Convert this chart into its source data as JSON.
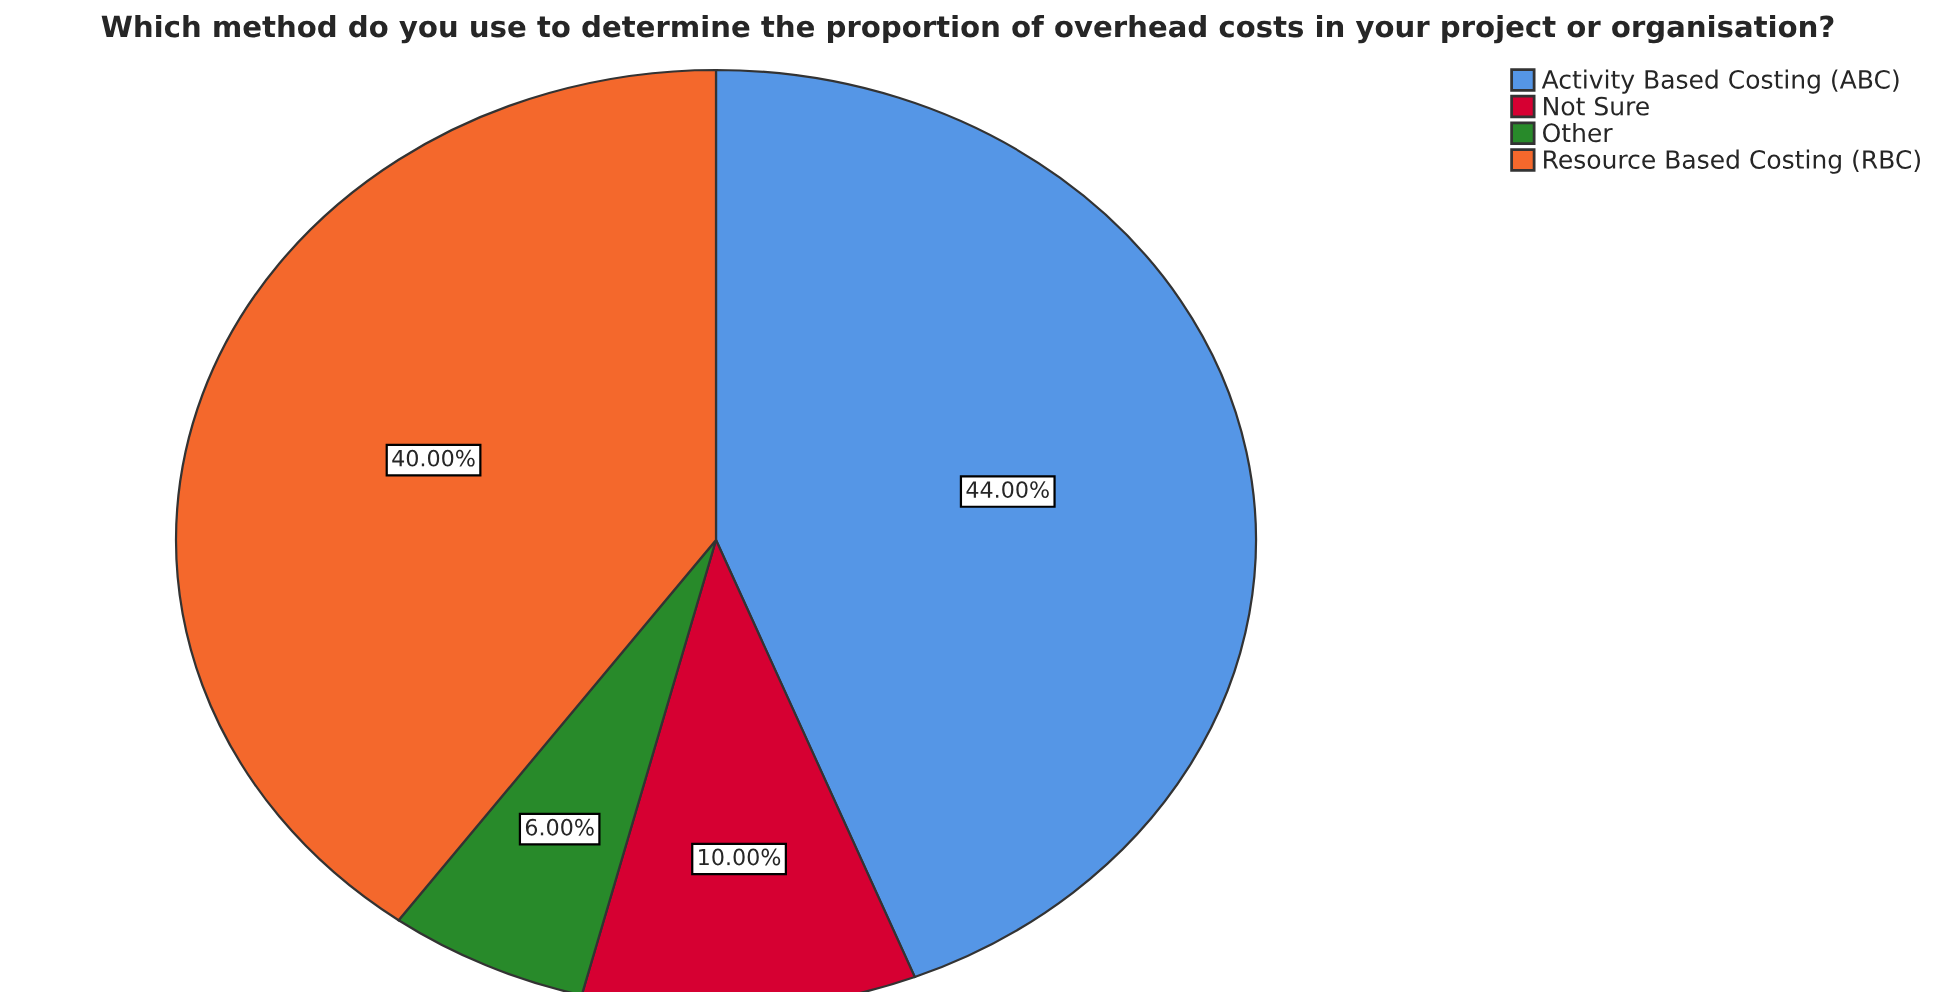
{
  "chart_data": {
    "type": "pie",
    "title": "Which method do you use to determine the proportion of overhead costs in your project or organisation?",
    "categories": [
      "Activity Based Costing (ABC)",
      "Not Sure",
      "Other",
      "Resource Based Costing (RBC)"
    ],
    "values": [
      44,
      10,
      6,
      40
    ],
    "colors": [
      "#5596e6",
      "#d60032",
      "#288a2a",
      "#f4682c"
    ],
    "value_labels": [
      "44.00%",
      "10.00%",
      "6.00%",
      "40.00%"
    ],
    "legend": "top right"
  }
}
